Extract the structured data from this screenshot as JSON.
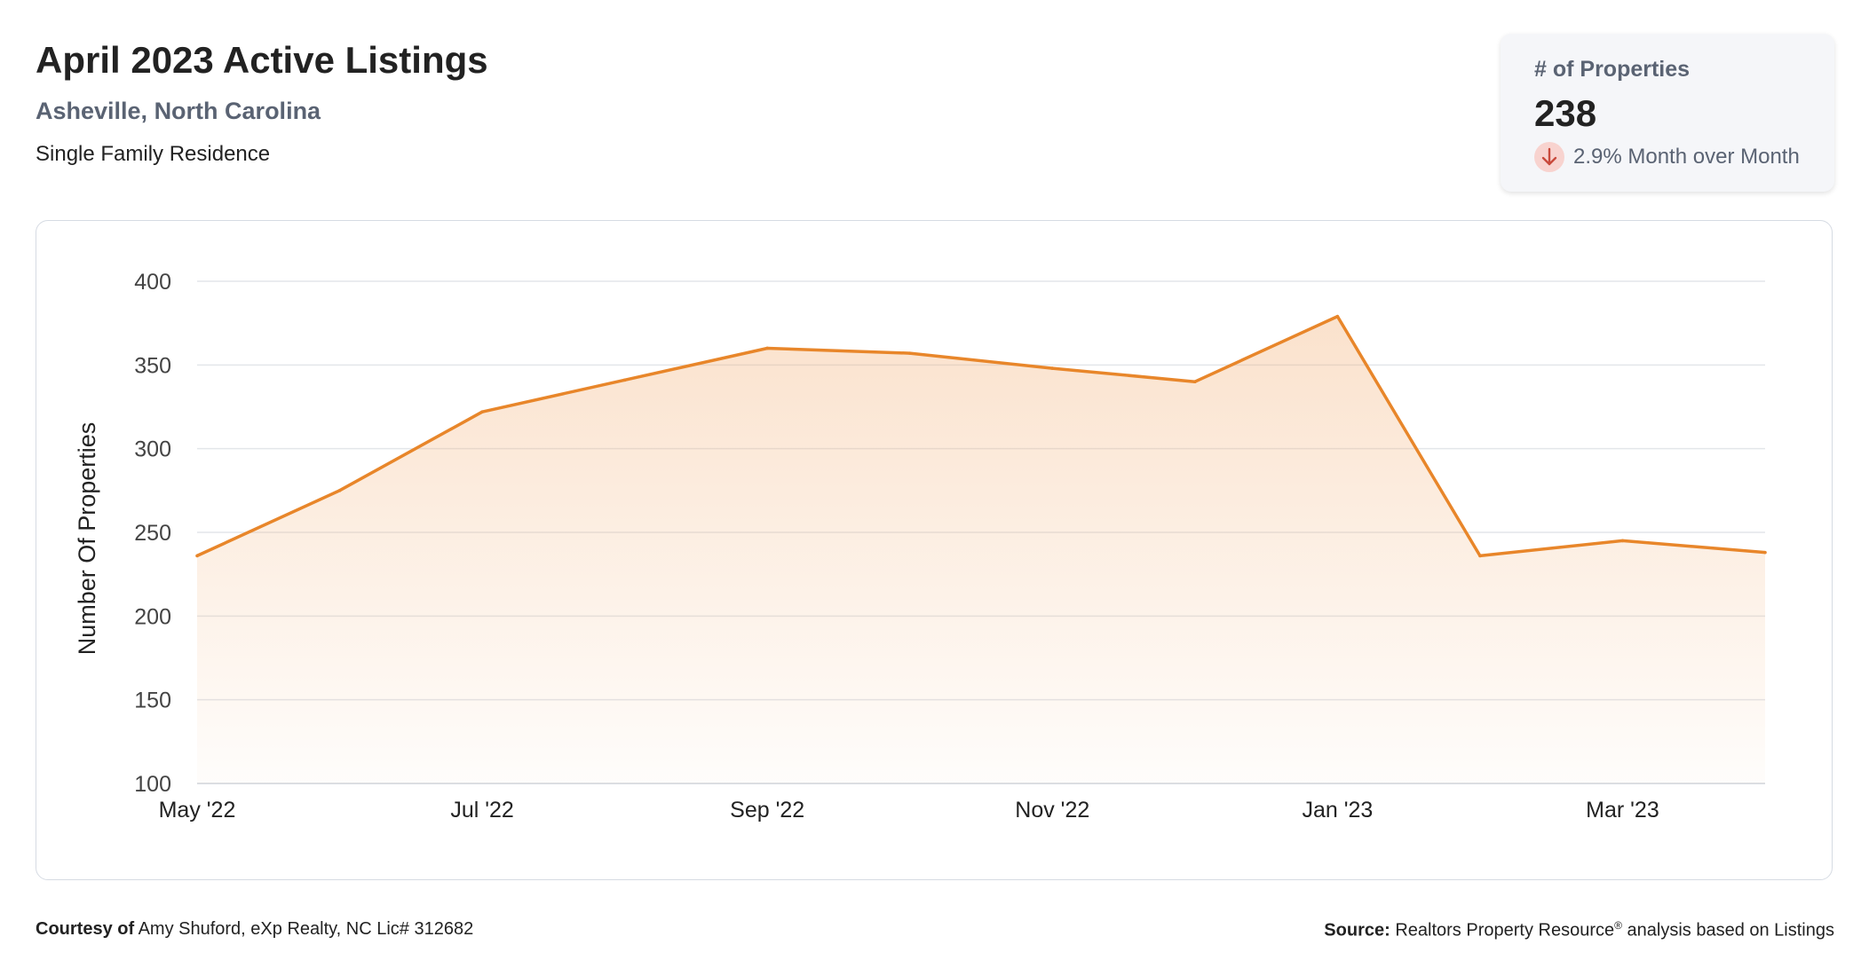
{
  "header": {
    "title": "April 2023 Active Listings",
    "location": "Asheville, North Carolina",
    "property_type": "Single Family Residence"
  },
  "stat_card": {
    "label": "# of Properties",
    "value": "238",
    "change": "2.9% Month over Month",
    "direction_icon": "arrow-down-icon",
    "badge_color": "#f8d3cf",
    "arrow_color": "#c94a3c"
  },
  "footer": {
    "courtesy_label": "Courtesy of",
    "courtesy_text": "Amy Shuford, eXp Realty, NC Lic# 312682",
    "source_label": "Source:",
    "source_name": "Realtors Property Resource",
    "source_mark": "®",
    "source_text": "analysis based on Listings"
  },
  "chart_data": {
    "type": "area",
    "ylabel": "Number Of Properties",
    "xlabel": "",
    "ylim": [
      100,
      400
    ],
    "yticks": [
      100,
      150,
      200,
      250,
      300,
      350,
      400
    ],
    "x": [
      "May '22",
      "Jun '22",
      "Jul '22",
      "Aug '22",
      "Sep '22",
      "Oct '22",
      "Nov '22",
      "Dec '22",
      "Jan '23",
      "Feb '23",
      "Mar '23",
      "Apr '23"
    ],
    "xtick_labels": [
      "May '22",
      "Jul '22",
      "Sep '22",
      "Nov '22",
      "Jan '23",
      "Mar '23"
    ],
    "series": [
      {
        "values": [
          236,
          275,
          322,
          341,
          360,
          357,
          348,
          340,
          379,
          236,
          245,
          238
        ],
        "color": "#e8862a"
      }
    ],
    "grid": true,
    "legend": "none"
  }
}
